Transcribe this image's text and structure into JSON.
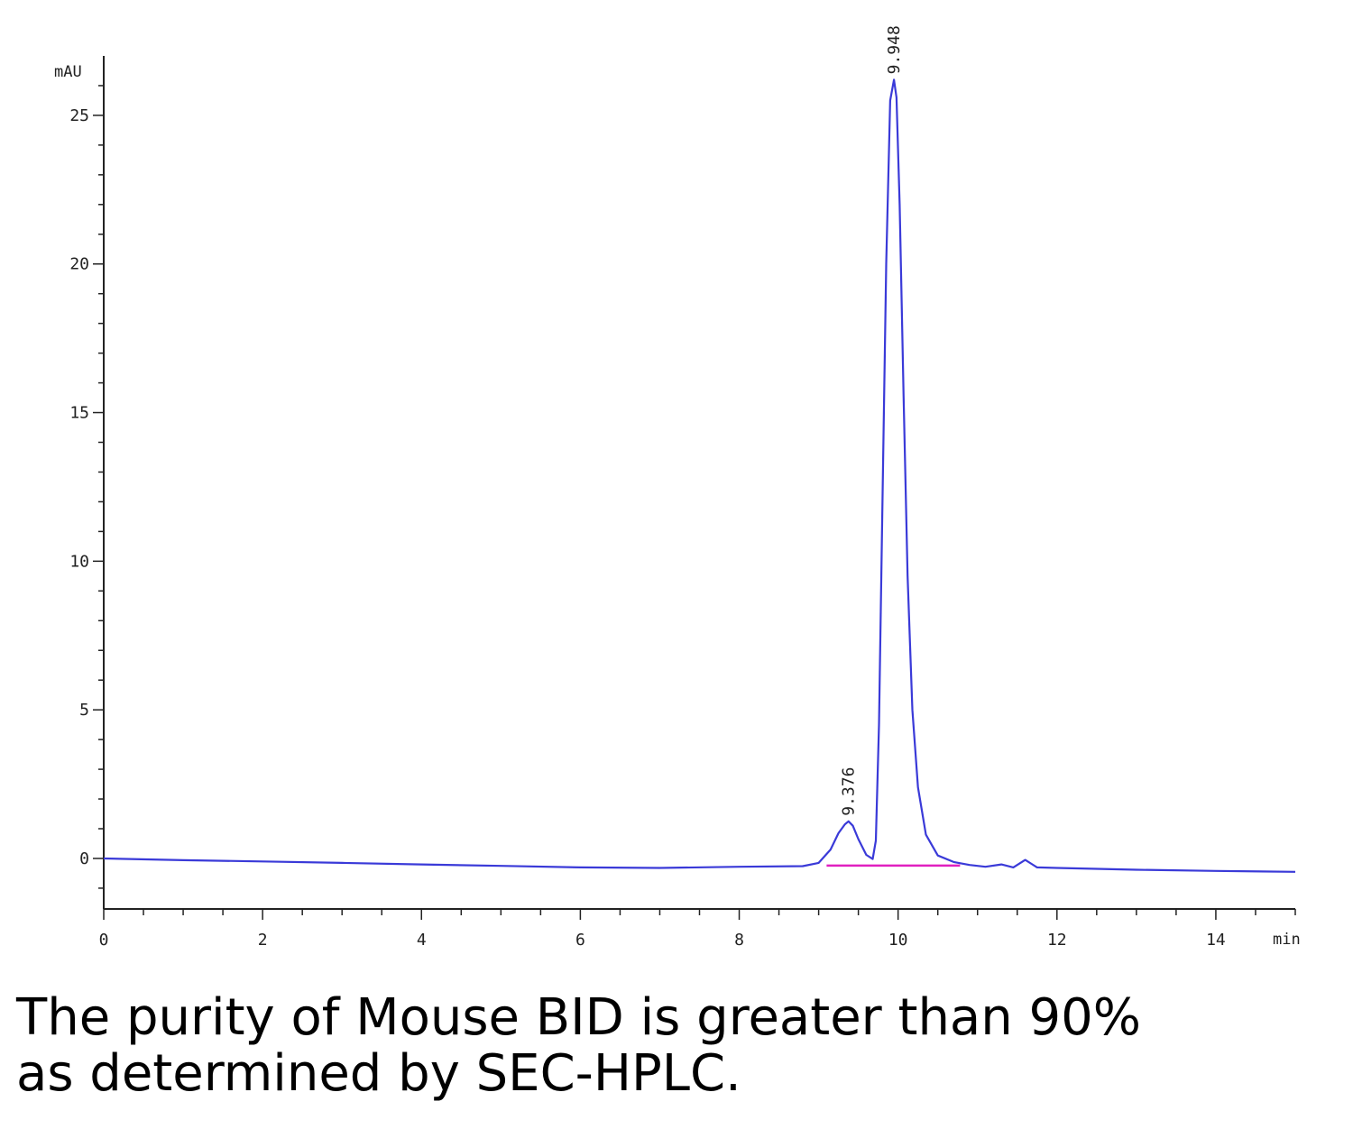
{
  "chart_data": {
    "type": "line",
    "ylabel": "mAU",
    "xlabel": "min",
    "xlim": [
      0,
      15
    ],
    "ylim": [
      -1.7,
      27
    ],
    "x_ticks": [
      "0",
      "2",
      "4",
      "6",
      "8",
      "10",
      "12",
      "14"
    ],
    "y_ticks": [
      "0",
      "5",
      "10",
      "15",
      "20",
      "25"
    ],
    "series": [
      {
        "color": "#3a3ad8",
        "x": [
          0,
          1,
          2,
          3,
          4,
          5,
          6,
          7,
          8,
          8.8,
          9.0,
          9.15,
          9.25,
          9.33,
          9.376,
          9.43,
          9.5,
          9.6,
          9.68,
          9.72,
          9.76,
          9.8,
          9.85,
          9.9,
          9.948,
          9.98,
          10.02,
          10.07,
          10.12,
          10.18,
          10.25,
          10.35,
          10.5,
          10.7,
          10.9,
          11.1,
          11.3,
          11.45,
          11.6,
          11.75,
          12,
          13,
          14,
          15
        ],
        "y": [
          0.0,
          -0.06,
          -0.1,
          -0.15,
          -0.2,
          -0.25,
          -0.3,
          -0.32,
          -0.28,
          -0.26,
          -0.15,
          0.3,
          0.85,
          1.15,
          1.25,
          1.1,
          0.65,
          0.12,
          -0.02,
          0.6,
          4.5,
          11.5,
          20.0,
          25.5,
          26.2,
          25.6,
          22.0,
          15.5,
          9.5,
          5.0,
          2.4,
          0.8,
          0.1,
          -0.12,
          -0.22,
          -0.28,
          -0.2,
          -0.3,
          -0.05,
          -0.3,
          -0.32,
          -0.38,
          -0.42,
          -0.45
        ]
      }
    ],
    "peak_labels": [
      {
        "x": 9.376,
        "y": 1.25,
        "text": "9.376"
      },
      {
        "x": 9.948,
        "y": 26.2,
        "text": "9.948"
      }
    ],
    "baseline": {
      "color": "#e020c0",
      "x": [
        9.1,
        10.78
      ],
      "y": [
        -0.24,
        -0.24
      ]
    }
  },
  "caption": {
    "line1": "The purity of Mouse BID is greater than 90%",
    "line2": "as determined by SEC-HPLC."
  }
}
